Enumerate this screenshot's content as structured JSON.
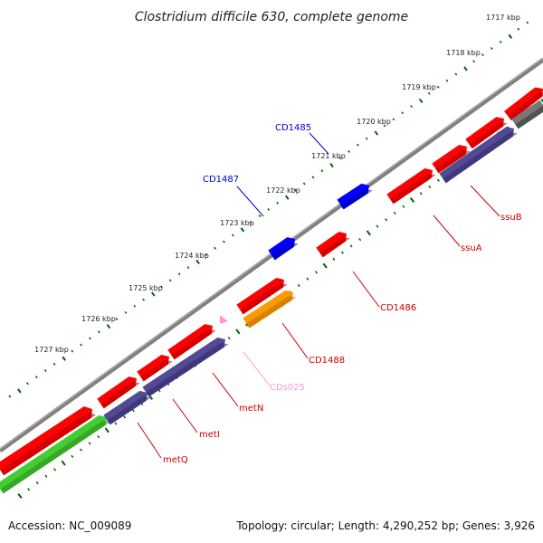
{
  "title": "Clostridium difficile 630, complete genome",
  "accession_label": "Accession: NC_009089",
  "summary_label": "Topology: circular; Length: 4,290,252 bp; Genes: 3,926",
  "colors": {
    "backbone": "#808080",
    "red": "#ff0000",
    "red_dark": "#b00000",
    "blue": "#0000ff",
    "blue_dark": "#000099",
    "purple": "#524a94",
    "purple_dark": "#2e2866",
    "orange": "#ff9900",
    "orange_dark": "#b86e00",
    "green": "#44cc33",
    "green_dark": "#2a8a1e",
    "pink": "#ff99cc",
    "gray_block": "#777777",
    "tick_dark": "#006600"
  },
  "ruler": {
    "ticks": [
      {
        "label": "1717 kbp"
      },
      {
        "label": "1718 kbp"
      },
      {
        "label": "1719 kbp"
      },
      {
        "label": "1720 kbp"
      },
      {
        "label": "1721 kbp"
      },
      {
        "label": "1722 kbp"
      },
      {
        "label": "1723 kbp"
      },
      {
        "label": "1724 kbp"
      },
      {
        "label": "1725 kbp"
      },
      {
        "label": "1726 kbp"
      },
      {
        "label": "1727 kbp"
      }
    ]
  },
  "features": [
    {
      "name": "CD1485",
      "label_color": "#0000cc",
      "feature_color": "blue"
    },
    {
      "name": "CD1487",
      "label_color": "#0000cc",
      "feature_color": "blue"
    },
    {
      "name": "ssuB",
      "label_color": "#cc0000",
      "feature_color": "purple"
    },
    {
      "name": "ssuA",
      "label_color": "#cc0000",
      "feature_color": "red"
    },
    {
      "name": "CD1486",
      "label_color": "#cc0000",
      "feature_color": "red"
    },
    {
      "name": "CD1488",
      "label_color": "#cc0000",
      "feature_color": "orange"
    },
    {
      "name": "CDs025",
      "label_color": "#ff99cc",
      "feature_color": "pink"
    },
    {
      "name": "metN",
      "label_color": "#cc0000",
      "feature_color": "purple"
    },
    {
      "name": "metI",
      "label_color": "#cc0000",
      "feature_color": "red"
    },
    {
      "name": "metQ",
      "label_color": "#cc0000",
      "feature_color": "purple"
    }
  ]
}
